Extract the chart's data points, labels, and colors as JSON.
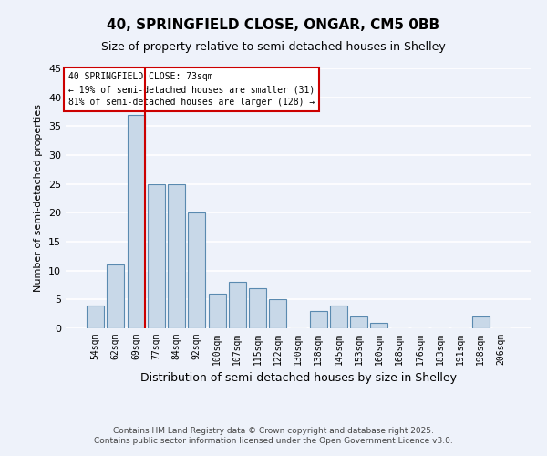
{
  "title": "40, SPRINGFIELD CLOSE, ONGAR, CM5 0BB",
  "subtitle": "Size of property relative to semi-detached houses in Shelley",
  "xlabel": "Distribution of semi-detached houses by size in Shelley",
  "ylabel": "Number of semi-detached properties",
  "bar_labels": [
    "54sqm",
    "62sqm",
    "69sqm",
    "77sqm",
    "84sqm",
    "92sqm",
    "100sqm",
    "107sqm",
    "115sqm",
    "122sqm",
    "130sqm",
    "138sqm",
    "145sqm",
    "153sqm",
    "160sqm",
    "168sqm",
    "176sqm",
    "183sqm",
    "191sqm",
    "198sqm",
    "206sqm"
  ],
  "bar_values": [
    4,
    11,
    37,
    25,
    25,
    20,
    6,
    8,
    7,
    5,
    0,
    3,
    4,
    2,
    1,
    0,
    0,
    0,
    0,
    2,
    0
  ],
  "bar_color": "#c8d8e8",
  "bar_edge_color": "#5a8ab0",
  "background_color": "#eef2fa",
  "grid_color": "#ffffff",
  "vline_color": "#cc0000",
  "annotation_title": "40 SPRINGFIELD CLOSE: 73sqm",
  "annotation_line1": "← 19% of semi-detached houses are smaller (31)",
  "annotation_line2": "81% of semi-detached houses are larger (128) →",
  "annotation_box_color": "#cc0000",
  "ylim": [
    0,
    45
  ],
  "yticks": [
    0,
    5,
    10,
    15,
    20,
    25,
    30,
    35,
    40,
    45
  ],
  "footnote1": "Contains HM Land Registry data © Crown copyright and database right 2025.",
  "footnote2": "Contains public sector information licensed under the Open Government Licence v3.0."
}
